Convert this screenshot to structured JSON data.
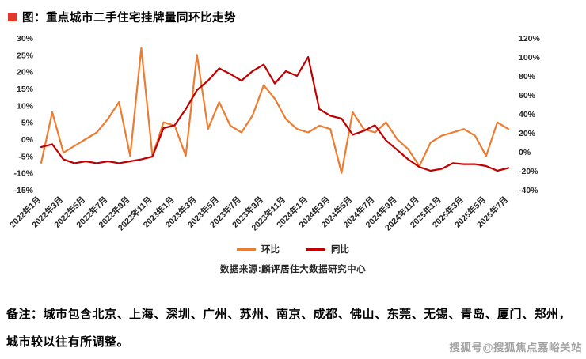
{
  "title": "图：重点城市二手住宅挂牌量同环比走势",
  "source": "数据来源:麟评居住大数据研究中心",
  "note": {
    "line1": "备注：城市包含北京、上海、深圳、广州、苏州、南京、成都、佛山、东莞、无锡、青岛、厦门、郑州，",
    "line2": "城市较以往有所调整。"
  },
  "watermark": "搜狐号@搜狐焦点嘉峪关站",
  "colors": {
    "bullet": "#e03a2b",
    "mom_line": "#ee7c30",
    "yoy_line": "#c00000",
    "tick_text": "#262626",
    "watermark_text": "#a3a3a3"
  },
  "chart_data": {
    "type": "line",
    "title": "重点城市二手住宅挂牌量同环比走势",
    "n_points": 43,
    "points_per_tick": 2,
    "x_tick_labels": [
      "2022年1月",
      "2022年3月",
      "2022年5月",
      "2022年7月",
      "2022年9月",
      "2022年11月",
      "2023年1月",
      "2023年3月",
      "2023年5月",
      "2023年7月",
      "2023年9月",
      "2023年11月",
      "2024年1月",
      "2024年3月",
      "2024年5月",
      "2024年7月",
      "2024年9月",
      "2024年11月",
      "2025年1月",
      "2025年3月",
      "2025年5月",
      "2025年7月"
    ],
    "left_axis": {
      "min": -15,
      "max": 30,
      "step": 5,
      "tick_labels": [
        "30%",
        "25%",
        "20%",
        "15%",
        "10%",
        "5%",
        "0%",
        "-5%",
        "-10%",
        "-15%"
      ]
    },
    "right_axis": {
      "min": -40,
      "max": 120,
      "step": 20,
      "tick_labels": [
        "120%",
        "100%",
        "80%",
        "60%",
        "40%",
        "20%",
        "0%",
        "-20%",
        "-40%"
      ]
    },
    "grid": false,
    "legend_position": "bottom",
    "series": [
      {
        "name": "环比",
        "axis": "left",
        "unit": "%",
        "color": "#ee7c30",
        "values": [
          -7,
          8,
          -4,
          -2,
          0,
          2,
          6,
          11,
          -5,
          27,
          -5,
          5,
          4,
          -5,
          25,
          3,
          11,
          4,
          2,
          7,
          16,
          12,
          6,
          3,
          2,
          4,
          3,
          -10,
          8,
          3,
          2,
          5,
          0,
          -3,
          -8,
          -1,
          1,
          2,
          3,
          1,
          -5,
          5,
          3
        ]
      },
      {
        "name": "同比",
        "axis": "right",
        "unit": "%",
        "color": "#c00000",
        "values": [
          5,
          8,
          -8,
          -12,
          -10,
          -12,
          -10,
          -12,
          -10,
          -8,
          -5,
          25,
          28,
          45,
          65,
          75,
          88,
          82,
          75,
          85,
          92,
          72,
          85,
          80,
          100,
          45,
          38,
          35,
          18,
          22,
          28,
          12,
          2,
          -8,
          -16,
          -20,
          -18,
          -12,
          -13,
          -13,
          -15,
          -20,
          -17
        ]
      }
    ]
  }
}
